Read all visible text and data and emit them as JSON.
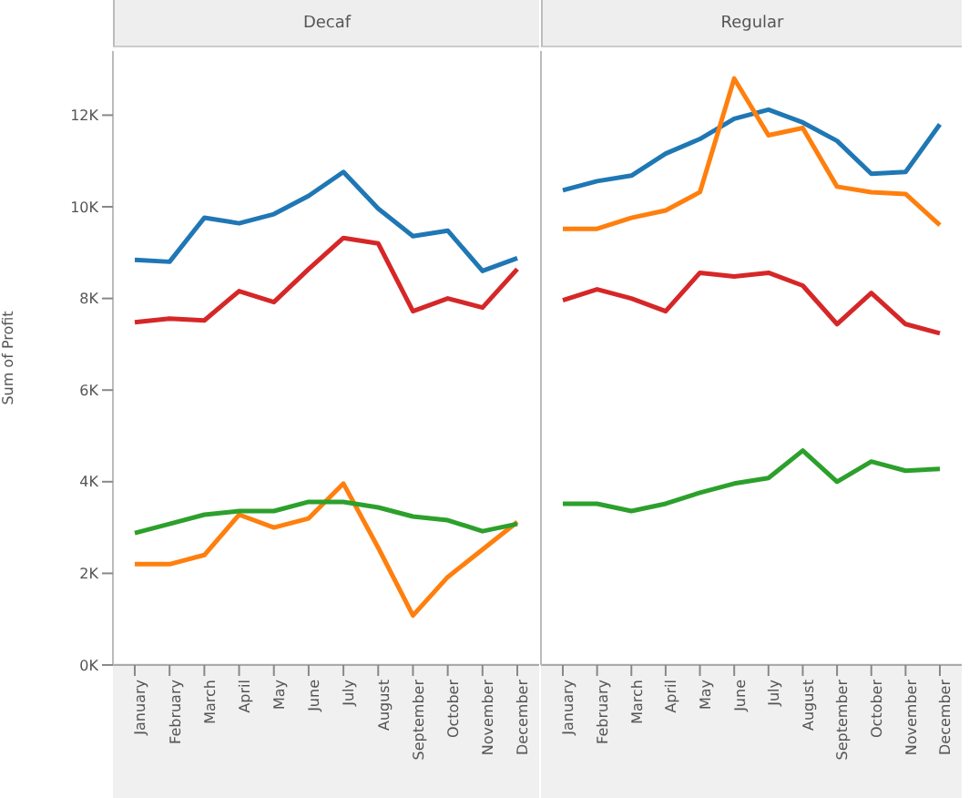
{
  "chart_data": [
    {
      "type": "line",
      "title": "Decaf",
      "ylabel": "Sum of Profit",
      "categories": [
        "January",
        "February",
        "March",
        "April",
        "May",
        "June",
        "July",
        "August",
        "September",
        "October",
        "November",
        "December"
      ],
      "ylim": [
        0,
        13400
      ],
      "yticks": [
        {
          "value": 0,
          "label": "0K"
        },
        {
          "value": 2000,
          "label": "2K"
        },
        {
          "value": 4000,
          "label": "4K"
        },
        {
          "value": 6000,
          "label": "6K"
        },
        {
          "value": 8000,
          "label": "8K"
        },
        {
          "value": 10000,
          "label": "10K"
        },
        {
          "value": 12000,
          "label": "12K"
        }
      ],
      "series": [
        {
          "color": "#1f77b4",
          "values": [
            8840,
            8800,
            9760,
            9640,
            9840,
            10240,
            10760,
            9960,
            9360,
            9480,
            8600,
            8880
          ]
        },
        {
          "color": "#ff7f0e",
          "values": [
            2200,
            2200,
            2400,
            3280,
            3000,
            3200,
            3960,
            2560,
            1080,
            1920,
            2520,
            3120
          ]
        },
        {
          "color": "#d62728",
          "values": [
            7480,
            7560,
            7520,
            8160,
            7920,
            8640,
            9320,
            9200,
            7720,
            8000,
            7800,
            8640
          ]
        },
        {
          "color": "#2ca02c",
          "values": [
            2880,
            3080,
            3280,
            3360,
            3360,
            3560,
            3560,
            3440,
            3240,
            3160,
            2920,
            3080
          ]
        }
      ]
    },
    {
      "type": "line",
      "title": "Regular",
      "tick_labels": "x",
      "categories": [
        "January",
        "February",
        "March",
        "April",
        "May",
        "June",
        "July",
        "August",
        "September",
        "October",
        "November",
        "December"
      ],
      "ylim": [
        0,
        13400
      ],
      "series": [
        {
          "color": "#1f77b4",
          "values": [
            10360,
            10560,
            10680,
            11160,
            11480,
            11920,
            12120,
            11840,
            11440,
            10720,
            10760,
            11800
          ]
        },
        {
          "color": "#ff7f0e",
          "values": [
            9520,
            9520,
            9760,
            9920,
            10320,
            12800,
            11560,
            11720,
            10440,
            10320,
            10280,
            9600
          ]
        },
        {
          "color": "#d62728",
          "values": [
            7960,
            8200,
            8000,
            7720,
            8560,
            8480,
            8560,
            8280,
            7440,
            8120,
            7440,
            7240
          ]
        },
        {
          "color": "#2ca02c",
          "values": [
            3520,
            3520,
            3360,
            3520,
            3760,
            3960,
            4080,
            4680,
            4000,
            4440,
            4240,
            4280
          ]
        }
      ]
    }
  ]
}
